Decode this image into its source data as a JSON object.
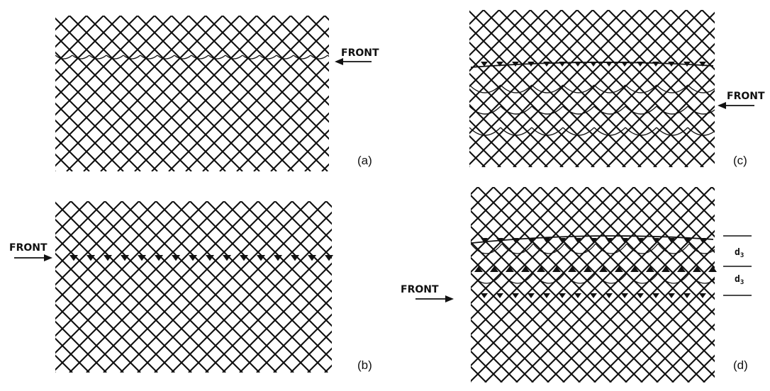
{
  "figure": {
    "panels": [
      {
        "id": "a",
        "label": "(a)",
        "front_label": "FRONT",
        "domain_walls": 0
      },
      {
        "id": "b",
        "label": "(b)",
        "front_label": "FRONT",
        "domain_walls": 1
      },
      {
        "id": "c",
        "label": "(c)",
        "front_label": "FRONT",
        "domain_walls": 1
      },
      {
        "id": "d",
        "label": "(d)",
        "front_label": "FRONT",
        "domain_walls": 3,
        "spacing_labels": [
          {
            "base": "d",
            "sub": "3"
          },
          {
            "base": "d",
            "sub": "3"
          }
        ]
      }
    ],
    "line_color": "#111111",
    "background_color": "#ffffff"
  }
}
